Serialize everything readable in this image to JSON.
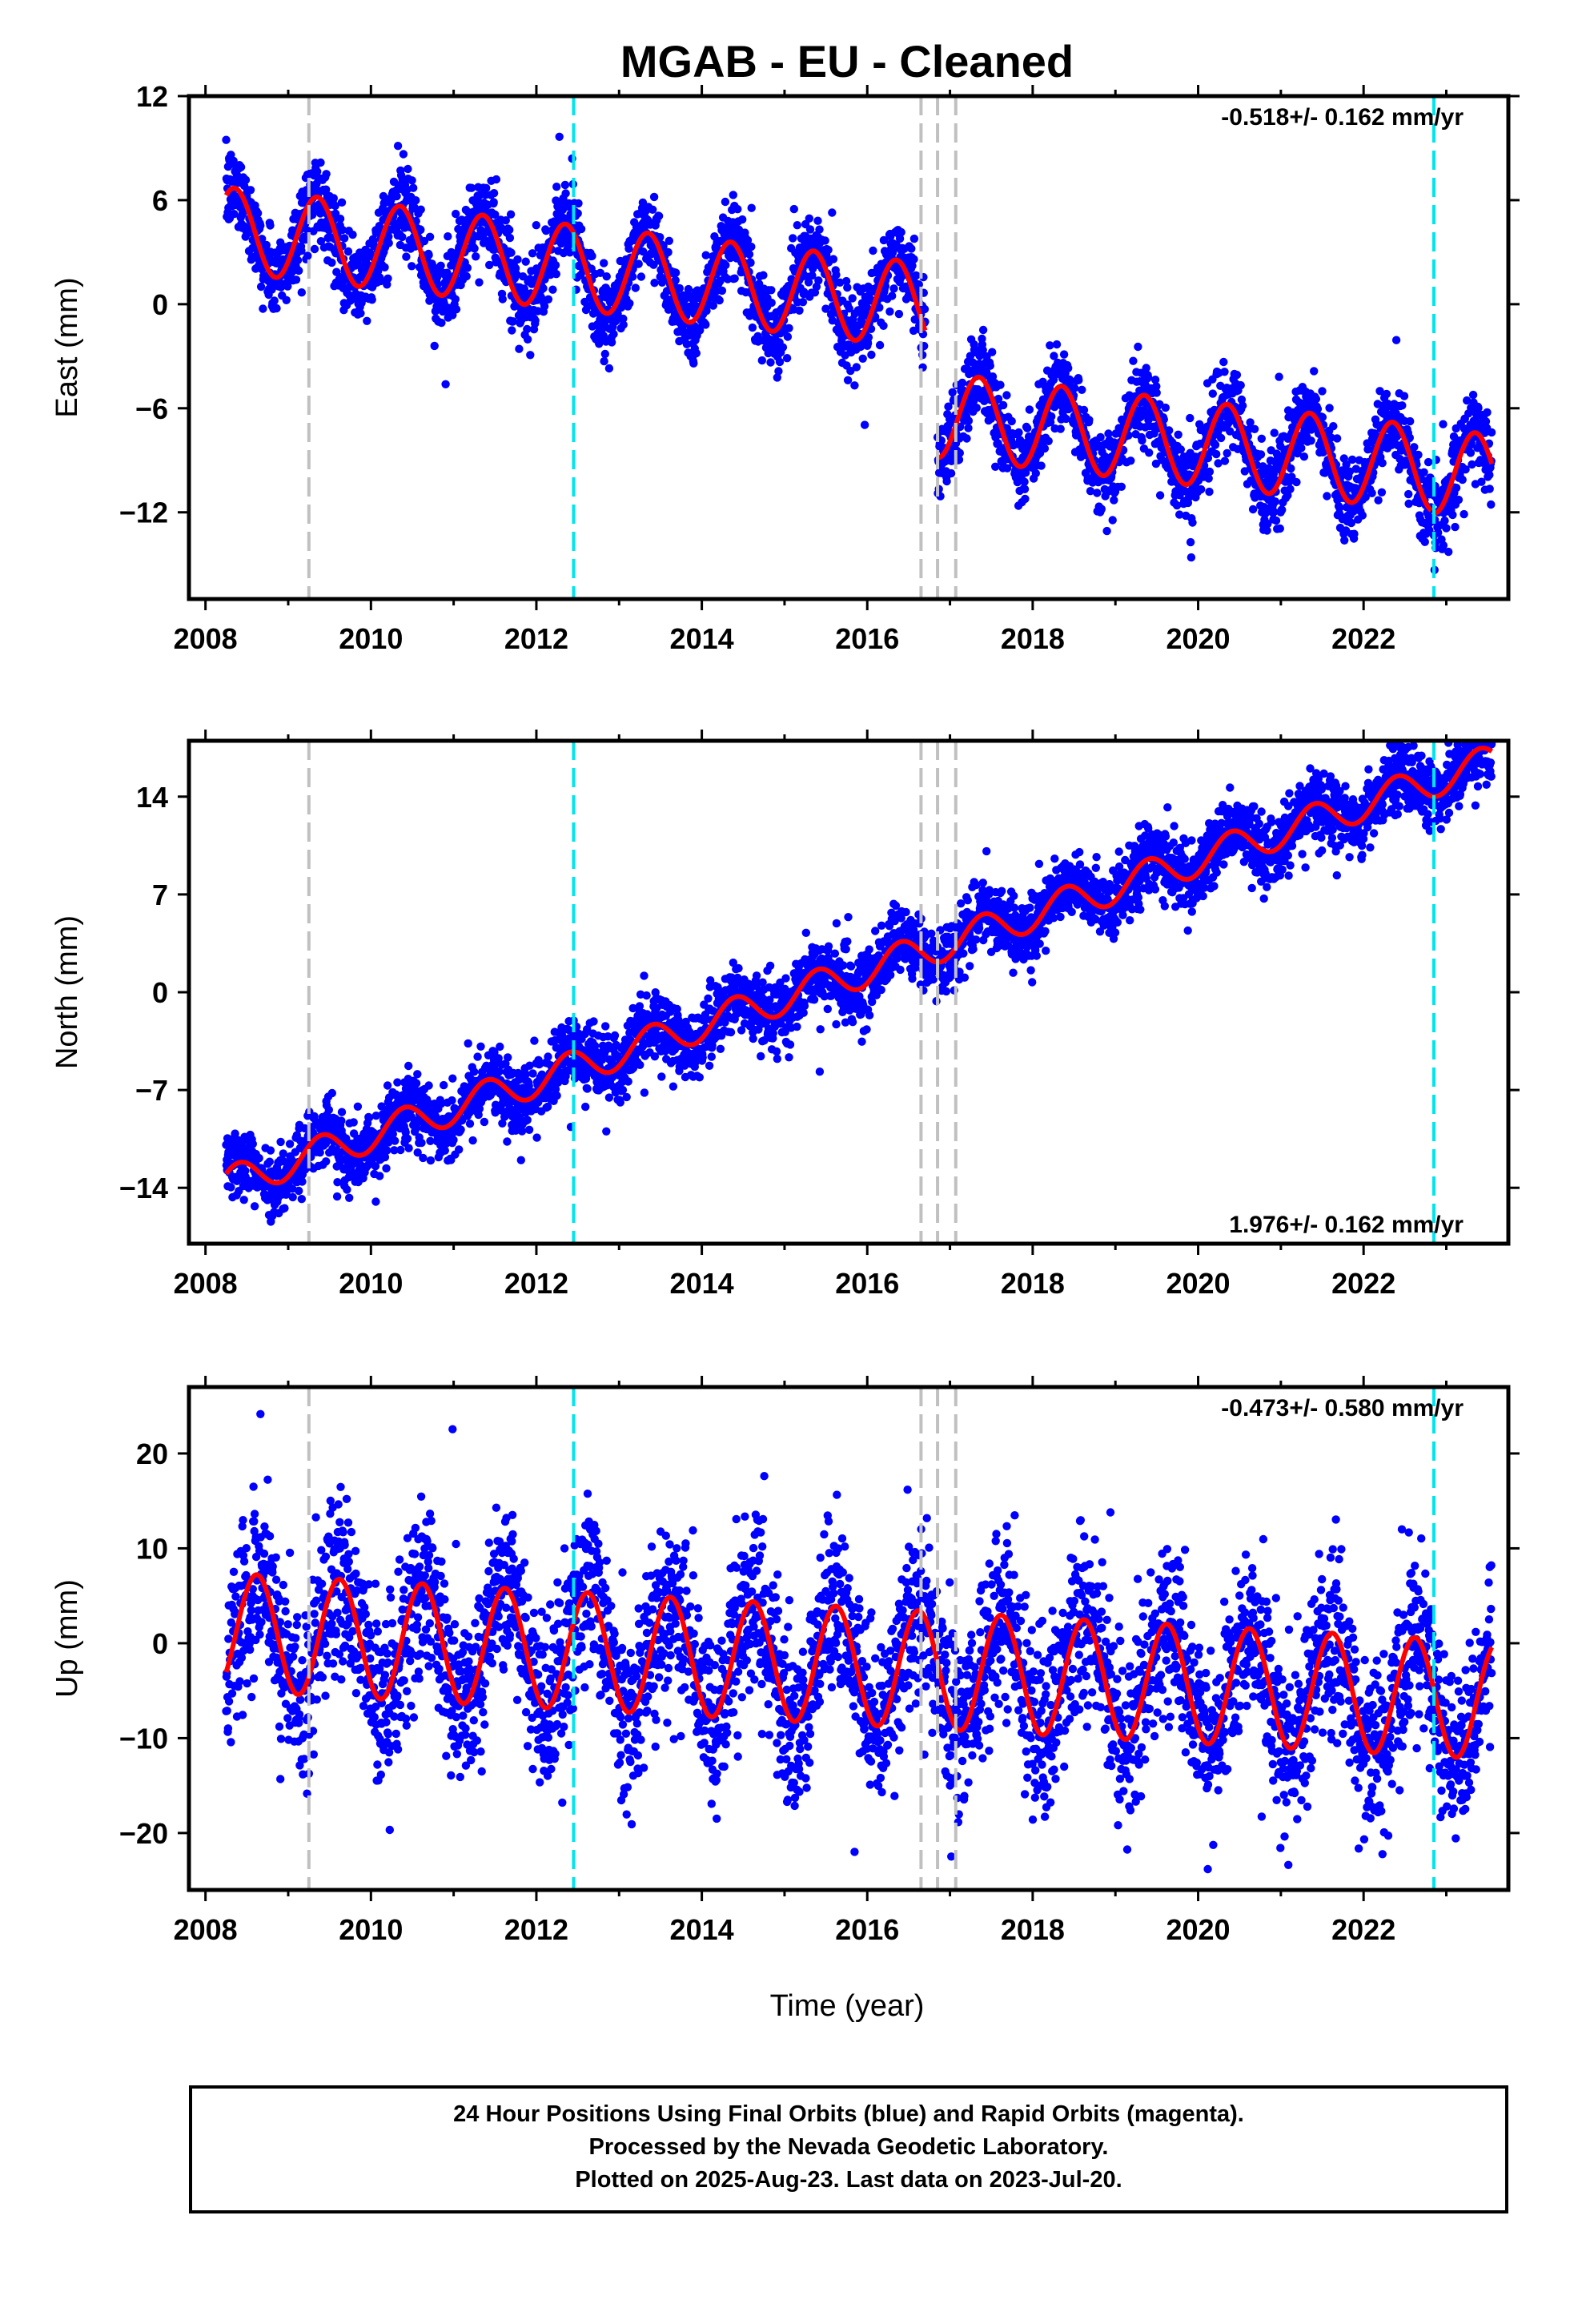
{
  "title": "MGAB  - EU - Cleaned",
  "xlabel": "Time (year)",
  "footer": {
    "line1": "24 Hour Positions Using Final Orbits (blue) and Rapid Orbits (magenta).",
    "line2": "Processed by the Nevada Geodetic Laboratory.",
    "line3": "Plotted on 2025-Aug-23. Last data on 2023-Jul-20."
  },
  "colors": {
    "points": "#0000ff",
    "model": "#ff0000",
    "equipment_change": "#c0c0c0",
    "earthquake": "#00e5ee"
  },
  "chart_data": [
    {
      "type": "scatter",
      "component": "east",
      "ylabel": "East (mm)",
      "rate_text": "-0.518+/- 0.162 mm/yr",
      "rate_position": "top-right",
      "xlim": [
        2007.8,
        2023.75
      ],
      "ylim": [
        -17,
        12
      ],
      "yticks": [
        12,
        6,
        0,
        -6,
        -12
      ],
      "ytick_labels": [
        "12",
        "6",
        "0",
        "−6",
        "−12"
      ],
      "xticks": [
        2008,
        2010,
        2012,
        2014,
        2016,
        2018,
        2020,
        2022
      ],
      "xtick_labels": [
        "2008",
        "2010",
        "2012",
        "2014",
        "2016",
        "2018",
        "2020",
        "2022"
      ],
      "gray_dashed_lines": [
        2009.25,
        2016.65,
        2016.85,
        2017.07
      ],
      "cyan_dashed_lines": [
        2012.45,
        2022.85
      ],
      "model": {
        "segments": [
          {
            "start": 2008.25,
            "end": 2016.7,
            "offset": 4.3,
            "t0": 2008.25,
            "rate": -0.518,
            "amplitude": 2.45,
            "phase_peak": 2008.35
          },
          {
            "start": 2016.85,
            "end": 2022.82,
            "offset": -6.4,
            "t0": 2016.85,
            "rate": -0.518,
            "amplitude": 2.45,
            "phase_peak": 2008.35
          },
          {
            "start": 2022.85,
            "end": 2023.55,
            "offset": -9.6,
            "t0": 2022.85,
            "rate": -0.518,
            "amplitude": 2.45,
            "phase_peak": 2008.35
          }
        ],
        "noise_std": 1.15
      }
    },
    {
      "type": "scatter",
      "component": "north",
      "ylabel": "North (mm)",
      "rate_text": "1.976+/- 0.162 mm/yr",
      "rate_position": "bottom-right",
      "xlim": [
        2007.8,
        2023.75
      ],
      "ylim": [
        -18,
        18
      ],
      "yticks": [
        14,
        7,
        0,
        -7,
        -14
      ],
      "ytick_labels": [
        "14",
        "7",
        "0",
        "−7",
        "−14"
      ],
      "xticks": [
        2008,
        2010,
        2012,
        2014,
        2016,
        2018,
        2020,
        2022
      ],
      "xtick_labels": [
        "2008",
        "2010",
        "2012",
        "2014",
        "2016",
        "2018",
        "2020",
        "2022"
      ],
      "gray_dashed_lines": [
        2009.25,
        2016.65,
        2016.85,
        2017.07
      ],
      "cyan_dashed_lines": [
        2012.45,
        2022.85
      ],
      "model": {
        "segments": [
          {
            "start": 2008.25,
            "end": 2023.55,
            "offset": -13.7,
            "t0": 2008.25,
            "rate": 1.976,
            "amplitude": 1.2,
            "phase_peak": 2008.4
          }
        ],
        "noise_std": 1.2
      }
    },
    {
      "type": "scatter",
      "component": "up",
      "ylabel": "Up (mm)",
      "rate_text": "-0.473+/- 0.580 mm/yr",
      "rate_position": "top-right",
      "xlim": [
        2007.8,
        2023.75
      ],
      "ylim": [
        -26,
        27
      ],
      "yticks": [
        20,
        10,
        0,
        -10,
        -20
      ],
      "ytick_labels": [
        "20",
        "10",
        "0",
        "−10",
        "−20"
      ],
      "xticks": [
        2008,
        2010,
        2012,
        2014,
        2016,
        2018,
        2020,
        2022
      ],
      "xtick_labels": [
        "2008",
        "2010",
        "2012",
        "2014",
        "2016",
        "2018",
        "2020",
        "2022"
      ],
      "gray_dashed_lines": [
        2009.25,
        2016.65,
        2016.85,
        2017.07
      ],
      "cyan_dashed_lines": [
        2012.45,
        2022.85
      ],
      "model": {
        "segments": [
          {
            "start": 2008.25,
            "end": 2023.55,
            "offset": 1.2,
            "t0": 2008.25,
            "rate": -0.473,
            "amplitude": 6.2,
            "phase_peak": 2008.62
          }
        ],
        "noise_std": 4.5
      }
    }
  ]
}
